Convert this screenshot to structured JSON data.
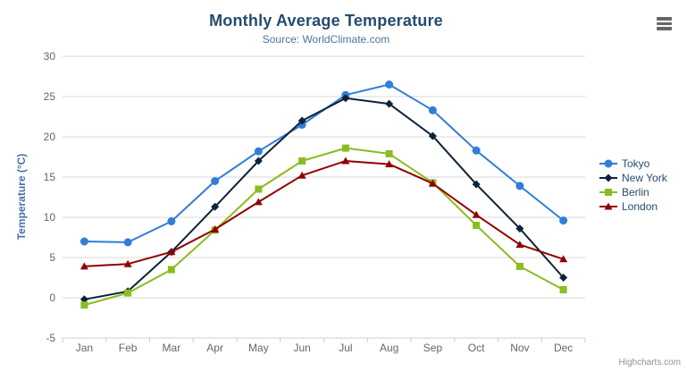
{
  "header": {
    "title": "Monthly Average Temperature",
    "subtitle": "Source: WorldClimate.com"
  },
  "credit": "Highcharts.com",
  "icons": {
    "context_menu": "hamburger"
  },
  "colors": {
    "title": "#274b6d",
    "subtitle": "#4d759e",
    "axis_title": "#4572a7",
    "axis_labels": "#666666",
    "grid_line": "#d8d8d8",
    "axis_line": "#c0d0e0",
    "credit": "#909090"
  },
  "chart_data": {
    "type": "line",
    "title": "Monthly Average Temperature",
    "subtitle": "Source: WorldClimate.com",
    "xlabel": "",
    "ylabel": "Temperature (°C)",
    "ylim": [
      -5,
      30
    ],
    "ytick_step": 5,
    "grid": true,
    "legend_position": "right",
    "categories": [
      "Jan",
      "Feb",
      "Mar",
      "Apr",
      "May",
      "Jun",
      "Jul",
      "Aug",
      "Sep",
      "Oct",
      "Nov",
      "Dec"
    ],
    "series": [
      {
        "name": "Tokyo",
        "color": "#2f7ed8",
        "marker": "circle",
        "values": [
          7.0,
          6.9,
          9.5,
          14.5,
          18.2,
          21.5,
          25.2,
          26.5,
          23.3,
          18.3,
          13.9,
          9.6
        ]
      },
      {
        "name": "New York",
        "color": "#0d233a",
        "marker": "diamond",
        "values": [
          -0.2,
          0.8,
          5.7,
          11.3,
          17.0,
          22.0,
          24.8,
          24.1,
          20.1,
          14.1,
          8.6,
          2.5
        ]
      },
      {
        "name": "Berlin",
        "color": "#8bbc21",
        "marker": "square",
        "values": [
          -0.9,
          0.6,
          3.5,
          8.4,
          13.5,
          17.0,
          18.6,
          17.9,
          14.3,
          9.0,
          3.9,
          1.0
        ]
      },
      {
        "name": "London",
        "color": "#910000",
        "marker": "triangle",
        "values": [
          3.9,
          4.2,
          5.7,
          8.5,
          11.9,
          15.2,
          17.0,
          16.6,
          14.2,
          10.3,
          6.6,
          4.8
        ]
      }
    ]
  }
}
